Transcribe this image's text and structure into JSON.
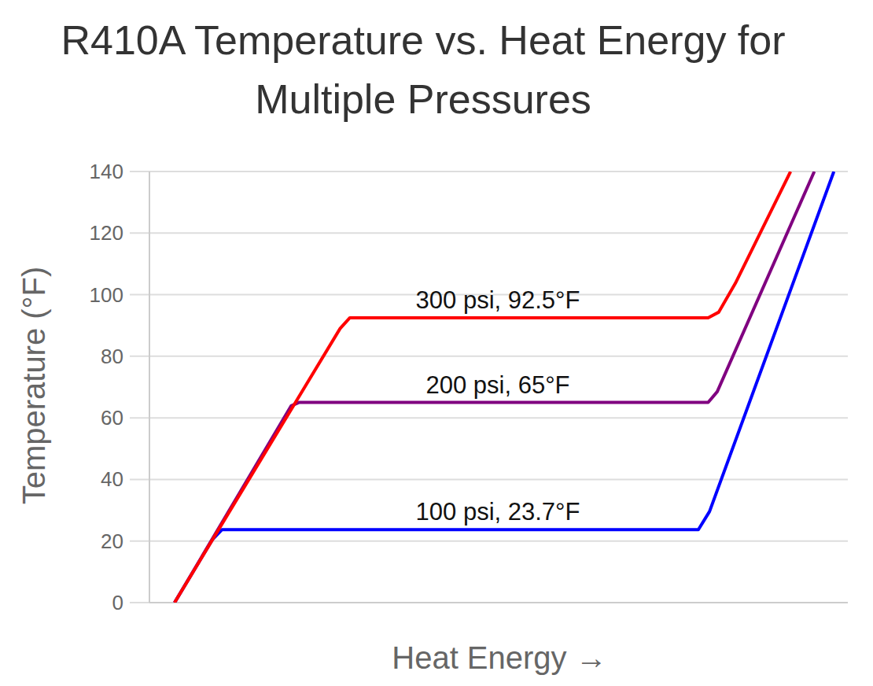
{
  "chart_data": {
    "type": "line",
    "title": "R410A Temperature vs. Heat Energy for Multiple Pressures",
    "x_label": "Heat Energy →",
    "y_label": "Temperature (°F)",
    "xlim": [
      0,
      100
    ],
    "ylim": [
      0,
      140
    ],
    "yticks": [
      0,
      20,
      40,
      60,
      80,
      100,
      120,
      140
    ],
    "grid": true,
    "tick_labels": "y",
    "series": [
      {
        "name": "100 psi, 23.7°F",
        "color": "#0000ff",
        "x": [
          3.6,
          9.0,
          10.4,
          78.6,
          80.2,
          98.0
        ],
        "values": [
          0,
          20.4,
          23.7,
          23.7,
          29.6,
          140
        ]
      },
      {
        "name": "200 psi, 65°F",
        "color": "#800080",
        "x": [
          3.6,
          20.3,
          21.4,
          80.0,
          81.3,
          95.2
        ],
        "values": [
          0,
          63.9,
          65,
          65,
          68.5,
          140
        ]
      },
      {
        "name": "300 psi, 92.5°F",
        "color": "#ff0000",
        "x": [
          3.6,
          27.3,
          28.7,
          80.0,
          81.5,
          83.9,
          91.8
        ],
        "values": [
          0,
          89,
          92.5,
          92.5,
          94.3,
          103.7,
          140
        ]
      }
    ]
  }
}
